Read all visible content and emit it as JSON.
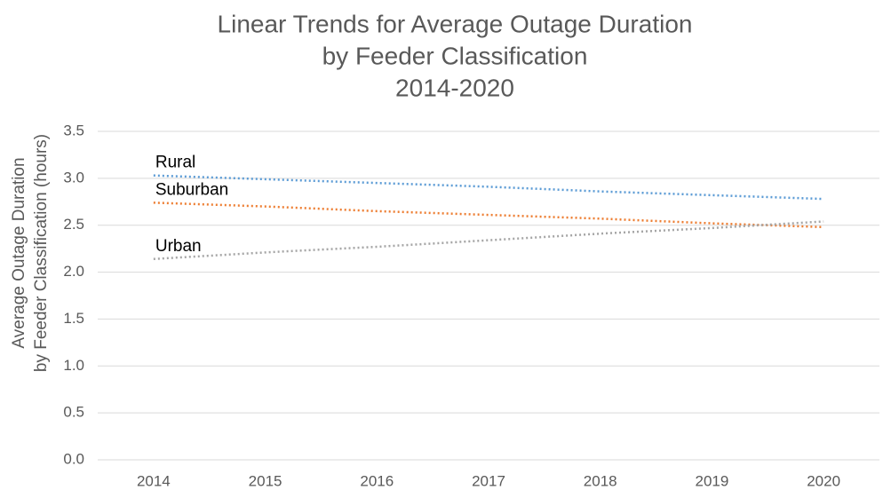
{
  "chart_data": {
    "type": "line",
    "title": [
      "Linear Trends for Average Outage Duration",
      "by Feeder Classification",
      "2014-2020"
    ],
    "y_label": [
      "Average Outage Duration",
      "by Feeder Classification (hours)"
    ],
    "categories": [
      "2014",
      "2015",
      "2016",
      "2017",
      "2018",
      "2019",
      "2020"
    ],
    "series": [
      {
        "name": "Rural",
        "color": "#5b9bd5",
        "values": [
          3.03,
          2.99,
          2.95,
          2.91,
          2.86,
          2.82,
          2.78
        ]
      },
      {
        "name": "Suburban",
        "color": "#ed7d31",
        "values": [
          2.74,
          2.7,
          2.65,
          2.61,
          2.57,
          2.52,
          2.48
        ]
      },
      {
        "name": "Urban",
        "color": "#a5a5a5",
        "values": [
          2.14,
          2.21,
          2.27,
          2.34,
          2.41,
          2.47,
          2.54
        ]
      }
    ],
    "ylim": [
      0,
      3.5
    ],
    "yticks": [
      {
        "value": 0,
        "label": "0.0"
      },
      0.5,
      {
        "value": 1,
        "label": "1.0"
      },
      1.5,
      {
        "value": 2,
        "label": "2.0"
      },
      2.5,
      {
        "value": 3,
        "label": "3.0"
      },
      3.5
    ],
    "grid": true,
    "line_style": "dotted"
  }
}
